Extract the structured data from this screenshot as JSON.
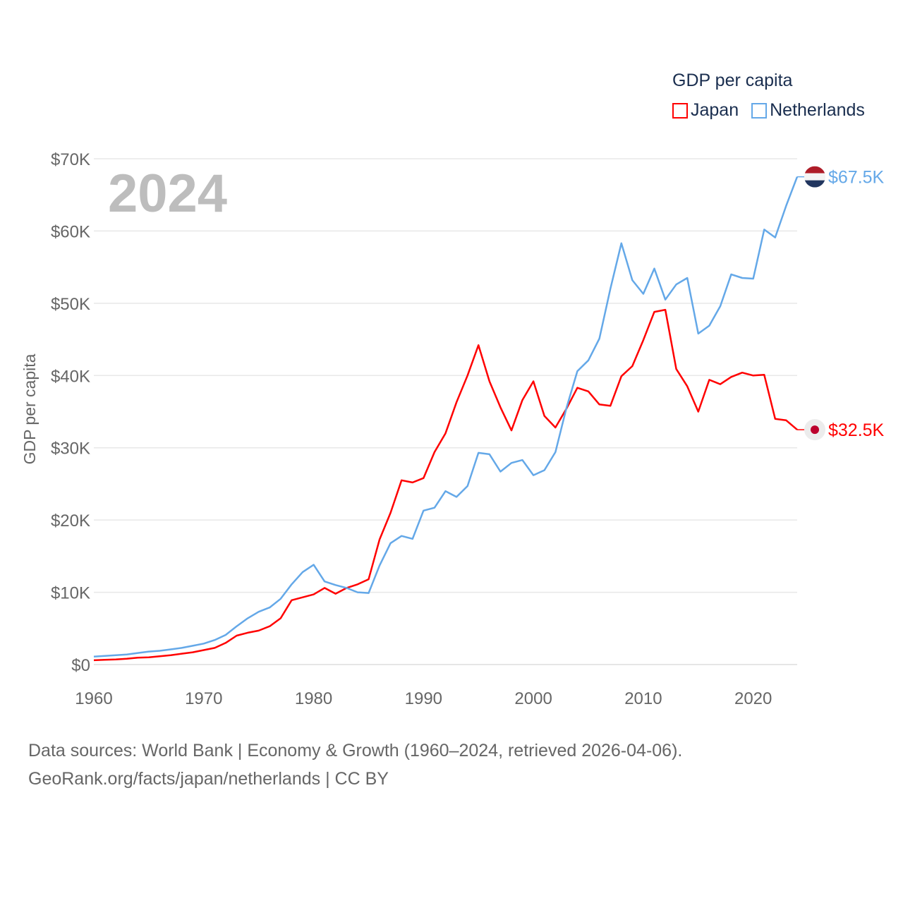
{
  "legend": {
    "title": "GDP per capita",
    "items": [
      {
        "name": "Japan",
        "color": "#ff0000"
      },
      {
        "name": "Netherlands",
        "color": "#64a8e8"
      }
    ]
  },
  "year_watermark": "2024",
  "footer": {
    "line1": "Data sources: World Bank | Economy & Growth (1960–2024, retrieved 2026-04-06).",
    "line2": "GeoRank.org/facts/japan/netherlands | CC BY"
  },
  "chart_data": {
    "type": "line",
    "title": "GDP per capita",
    "xlabel": "",
    "ylabel": "GDP per capita",
    "xlim": [
      1960,
      2024
    ],
    "ylim": [
      0,
      70000
    ],
    "x_ticks": [
      1960,
      1970,
      1980,
      1990,
      2000,
      2010,
      2020
    ],
    "x_tick_labels": [
      "1960",
      "1970",
      "1980",
      "1990",
      "2000",
      "2010",
      "2020"
    ],
    "y_ticks": [
      0,
      10000,
      20000,
      30000,
      40000,
      50000,
      60000,
      70000
    ],
    "y_tick_labels": [
      "$0",
      "$10K",
      "$20K",
      "$30K",
      "$40K",
      "$50K",
      "$60K",
      "$70K"
    ],
    "grid": true,
    "legend_position": "top-right",
    "x": [
      1960,
      1961,
      1962,
      1963,
      1964,
      1965,
      1966,
      1967,
      1968,
      1969,
      1970,
      1971,
      1972,
      1973,
      1974,
      1975,
      1976,
      1977,
      1978,
      1979,
      1980,
      1981,
      1982,
      1983,
      1984,
      1985,
      1986,
      1987,
      1988,
      1989,
      1990,
      1991,
      1992,
      1993,
      1994,
      1995,
      1996,
      1997,
      1998,
      1999,
      2000,
      2001,
      2002,
      2003,
      2004,
      2005,
      2006,
      2007,
      2008,
      2009,
      2010,
      2011,
      2012,
      2013,
      2014,
      2015,
      2016,
      2017,
      2018,
      2019,
      2020,
      2021,
      2022,
      2023,
      2024
    ],
    "series": [
      {
        "name": "Japan",
        "color": "#ff0000",
        "end_label": "$32.5K",
        "values": [
          600,
          650,
          700,
          800,
          950,
          1000,
          1150,
          1300,
          1500,
          1700,
          2000,
          2300,
          3000,
          4000,
          4400,
          4700,
          5300,
          6400,
          8900,
          9300,
          9700,
          10600,
          9800,
          10600,
          11100,
          11800,
          17300,
          21000,
          25500,
          25200,
          25800,
          29400,
          32000,
          36300,
          40000,
          44200,
          39200,
          35600,
          32400,
          36600,
          39200,
          34400,
          32800,
          35400,
          38300,
          37800,
          36000,
          35800,
          39900,
          41300,
          44900,
          48800,
          49100,
          40900,
          38500,
          35000,
          39400,
          38800,
          39800,
          40400,
          40000,
          40100,
          34000,
          33800,
          32500
        ]
      },
      {
        "name": "Netherlands",
        "color": "#64a8e8",
        "end_label": "$67.5K",
        "values": [
          1100,
          1200,
          1300,
          1400,
          1600,
          1800,
          1900,
          2100,
          2300,
          2600,
          2900,
          3400,
          4100,
          5300,
          6400,
          7300,
          7900,
          9100,
          11100,
          12800,
          13800,
          11500,
          11000,
          10600,
          10000,
          9900,
          13700,
          16800,
          17800,
          17400,
          21300,
          21700,
          24000,
          23200,
          24700,
          29300,
          29100,
          26700,
          27900,
          28300,
          26200,
          26900,
          29400,
          35500,
          40600,
          42100,
          45100,
          52000,
          58300,
          53200,
          51300,
          54800,
          50500,
          52600,
          53500,
          45800,
          46900,
          49600,
          54000,
          53500,
          53400,
          60200,
          59100,
          63500,
          67500
        ]
      }
    ]
  }
}
